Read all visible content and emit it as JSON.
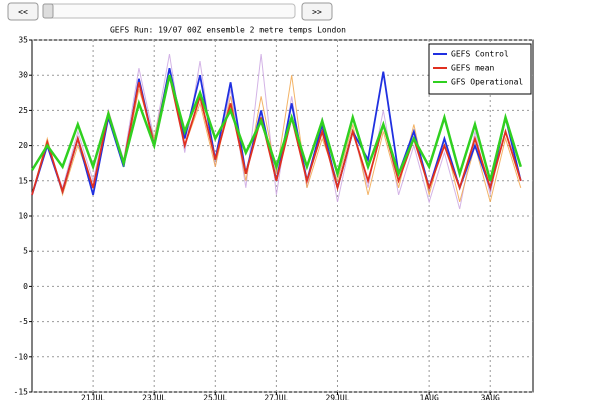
{
  "controls": {
    "prev": "<<",
    "next": ">>"
  },
  "chart_data": {
    "type": "line",
    "title": "GEFS Run: 19/07 00Z ensemble 2 metre temps London",
    "x": [
      0,
      0.5,
      1,
      1.5,
      2,
      2.5,
      3,
      3.5,
      4,
      4.5,
      5,
      5.5,
      6,
      6.5,
      7,
      7.5,
      8,
      8.5,
      9,
      9.5,
      10,
      10.5,
      11,
      11.5,
      12,
      12.5,
      13,
      13.5,
      14,
      14.5,
      15,
      15.5,
      16
    ],
    "xlim": [
      0,
      16.4
    ],
    "xticks": [
      {
        "value": 2,
        "label": "21JUL"
      },
      {
        "value": 4,
        "label": "23JUL"
      },
      {
        "value": 6,
        "label": "25JUL"
      },
      {
        "value": 8,
        "label": "27JUL"
      },
      {
        "value": 10,
        "label": "29JUL"
      },
      {
        "value": 13,
        "label": "1AUG"
      },
      {
        "value": 15,
        "label": "3AUG"
      }
    ],
    "ylim": [
      -15,
      35
    ],
    "yticks": [
      -15,
      -10,
      -5,
      0,
      5,
      10,
      15,
      20,
      25,
      30,
      35
    ],
    "grid": true,
    "legend": "upper right",
    "series": [
      {
        "color": "#c8a0e0",
        "values": [
          13,
          20,
          14,
          22,
          15,
          25,
          18,
          31,
          21,
          33,
          19,
          32,
          17,
          28,
          14,
          33,
          13,
          27,
          14,
          24,
          12,
          22,
          14,
          25,
          13,
          20,
          12,
          19,
          11,
          22,
          13,
          24,
          15
        ]
      },
      {
        "color": "#f0a040",
        "values": [
          13,
          21,
          13,
          20,
          14,
          25,
          17,
          28,
          21,
          31,
          20,
          26,
          17,
          27,
          15,
          27,
          16,
          30,
          14,
          21,
          15,
          23,
          13,
          22,
          14,
          23,
          13,
          21,
          12,
          20,
          12,
          21,
          14
        ]
      },
      {
        "name": "GEFS Control",
        "color": "#2030e0",
        "values": [
          13,
          20,
          13.5,
          21,
          13,
          24,
          17,
          29.5,
          20,
          31,
          21,
          30,
          18,
          29,
          16,
          25,
          15,
          26,
          15,
          23,
          14,
          22,
          18,
          30.5,
          16,
          22,
          14,
          21,
          14,
          20,
          14,
          24,
          15
        ]
      },
      {
        "name": "GEFS mean",
        "color": "#e03020",
        "values": [
          13,
          20.5,
          13.5,
          21,
          14,
          24.5,
          17.5,
          29,
          20,
          30,
          20,
          27,
          18,
          26,
          16,
          24,
          15,
          24,
          15,
          22,
          14,
          22,
          15,
          23,
          15,
          21,
          14,
          20,
          14,
          21,
          14,
          22,
          15
        ]
      },
      {
        "name": "GFS Operational",
        "color": "#30d020",
        "values": [
          16.5,
          20,
          17,
          23,
          17,
          24.5,
          17.5,
          26,
          20,
          30,
          22,
          27.5,
          21,
          25,
          19,
          23.5,
          17,
          24,
          17,
          23.5,
          16,
          24,
          17,
          23,
          16,
          21,
          17,
          24,
          16,
          23,
          15,
          24,
          17
        ]
      }
    ]
  }
}
